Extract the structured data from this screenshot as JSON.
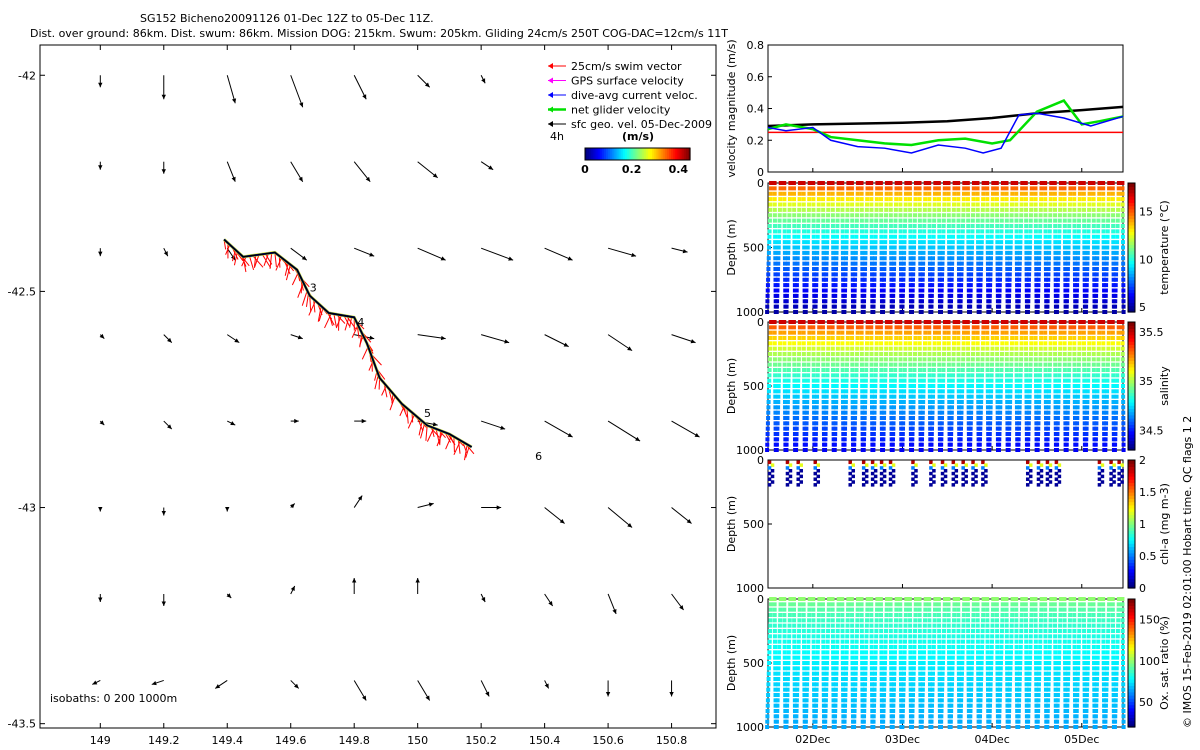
{
  "title_line1": "SG152 Bicheno20091126 01-Dec 12Z to 05-Dec 11Z.",
  "title_line2": "Dist. over ground: 86km. Dist. swum: 86km. Mission DOG: 215km. Swum: 205km. Gliding 24cm/s 250T COG-DAC=12cm/s 11T",
  "side_credit": "© IMOS 15-Feb-2019 02:01:00 Hobart time. QC flags 1  2",
  "colors": {
    "black": "#000000",
    "red": "#ff0000",
    "magenta": "#ff00ff",
    "blue": "#0000ff",
    "green": "#00e000",
    "yellow": "#e8e800"
  },
  "chart_data": [
    {
      "id": "map",
      "type": "scatter",
      "subtype": "vector-field-map",
      "x_ticks": [
        "149",
        "149.2",
        "149.4",
        "149.6",
        "149.8",
        "150",
        "150.2",
        "150.4",
        "150.6",
        "150.8"
      ],
      "y_ticks": [
        "-42",
        "-42.5",
        "-43",
        "-43.5"
      ],
      "xlim": [
        148.81,
        150.94
      ],
      "ylim": [
        -43.51,
        -41.93
      ],
      "legend": [
        {
          "label": "25cm/s swim vector",
          "color": "#ff0000"
        },
        {
          "label": "GPS surface velocity",
          "color": "#ff00ff"
        },
        {
          "label": "dive-avg current veloc.",
          "color": "#0000ff"
        },
        {
          "label": "net glider velocity",
          "color": "#00e000"
        },
        {
          "label": "sfc geo. vel. 05-Dec-2009",
          "color": "#000000"
        }
      ],
      "legend_position": "top-right",
      "colorbar": {
        "title": "(m/s)",
        "side_label": "4h",
        "ticks": [
          "0",
          "0.2",
          "0.4"
        ],
        "range": [
          0,
          0.45
        ]
      },
      "isobaths_text": "isobaths: 0   200  1000m",
      "day_markers": [
        {
          "label": "3",
          "lon": 149.66,
          "lat": -42.5
        },
        {
          "label": "4",
          "lon": 149.81,
          "lat": -42.58
        },
        {
          "label": "5",
          "lon": 150.02,
          "lat": -42.79
        },
        {
          "label": "6",
          "lon": 150.37,
          "lat": -42.89
        }
      ],
      "track": [
        [
          149.39,
          -42.38
        ],
        [
          149.45,
          -42.42
        ],
        [
          149.55,
          -42.41
        ],
        [
          149.62,
          -42.45
        ],
        [
          149.66,
          -42.51
        ],
        [
          149.72,
          -42.55
        ],
        [
          149.8,
          -42.56
        ],
        [
          149.84,
          -42.62
        ],
        [
          149.88,
          -42.7
        ],
        [
          149.95,
          -42.76
        ],
        [
          150.03,
          -42.81
        ],
        [
          150.1,
          -42.83
        ],
        [
          150.17,
          -42.86
        ]
      ],
      "vectors": [
        {
          "lon": 149.0,
          "lat": -42.0,
          "u": 0.0,
          "v": -0.03
        },
        {
          "lon": 149.2,
          "lat": -42.0,
          "u": 0.0,
          "v": -0.06
        },
        {
          "lon": 149.4,
          "lat": -42.0,
          "u": 0.02,
          "v": -0.07
        },
        {
          "lon": 149.6,
          "lat": -42.0,
          "u": 0.03,
          "v": -0.08
        },
        {
          "lon": 149.8,
          "lat": -42.0,
          "u": 0.03,
          "v": -0.06
        },
        {
          "lon": 150.0,
          "lat": -42.0,
          "u": 0.03,
          "v": -0.03
        },
        {
          "lon": 150.2,
          "lat": -42.0,
          "u": 0.01,
          "v": -0.02
        },
        {
          "lon": 149.0,
          "lat": -42.2,
          "u": 0.0,
          "v": -0.02
        },
        {
          "lon": 149.2,
          "lat": -42.2,
          "u": 0.0,
          "v": -0.03
        },
        {
          "lon": 149.4,
          "lat": -42.2,
          "u": 0.02,
          "v": -0.05
        },
        {
          "lon": 149.6,
          "lat": -42.2,
          "u": 0.03,
          "v": -0.05
        },
        {
          "lon": 149.8,
          "lat": -42.2,
          "u": 0.04,
          "v": -0.05
        },
        {
          "lon": 150.0,
          "lat": -42.2,
          "u": 0.05,
          "v": -0.04
        },
        {
          "lon": 150.2,
          "lat": -42.2,
          "u": 0.03,
          "v": -0.02
        },
        {
          "lon": 149.0,
          "lat": -42.4,
          "u": 0.0,
          "v": -0.02
        },
        {
          "lon": 149.2,
          "lat": -42.4,
          "u": 0.01,
          "v": -0.02
        },
        {
          "lon": 149.4,
          "lat": -42.4,
          "u": 0.02,
          "v": -0.03
        },
        {
          "lon": 149.6,
          "lat": -42.4,
          "u": 0.04,
          "v": -0.03
        },
        {
          "lon": 149.8,
          "lat": -42.4,
          "u": 0.05,
          "v": -0.02
        },
        {
          "lon": 150.0,
          "lat": -42.4,
          "u": 0.07,
          "v": -0.03
        },
        {
          "lon": 150.2,
          "lat": -42.4,
          "u": 0.08,
          "v": -0.03
        },
        {
          "lon": 150.4,
          "lat": -42.4,
          "u": 0.07,
          "v": -0.03
        },
        {
          "lon": 150.6,
          "lat": -42.4,
          "u": 0.07,
          "v": -0.02
        },
        {
          "lon": 150.8,
          "lat": -42.4,
          "u": 0.04,
          "v": -0.01
        },
        {
          "lon": 149.0,
          "lat": -42.6,
          "u": 0.01,
          "v": -0.01
        },
        {
          "lon": 149.2,
          "lat": -42.6,
          "u": 0.02,
          "v": -0.02
        },
        {
          "lon": 149.4,
          "lat": -42.6,
          "u": 0.03,
          "v": -0.02
        },
        {
          "lon": 149.6,
          "lat": -42.6,
          "u": 0.03,
          "v": -0.01
        },
        {
          "lon": 149.8,
          "lat": -42.6,
          "u": 0.05,
          "v": -0.01
        },
        {
          "lon": 150.0,
          "lat": -42.6,
          "u": 0.07,
          "v": -0.01
        },
        {
          "lon": 150.2,
          "lat": -42.6,
          "u": 0.07,
          "v": -0.02
        },
        {
          "lon": 150.4,
          "lat": -42.6,
          "u": 0.06,
          "v": -0.03
        },
        {
          "lon": 150.6,
          "lat": -42.6,
          "u": 0.06,
          "v": -0.04
        },
        {
          "lon": 150.8,
          "lat": -42.6,
          "u": 0.06,
          "v": -0.02
        },
        {
          "lon": 149.0,
          "lat": -42.8,
          "u": 0.01,
          "v": -0.01
        },
        {
          "lon": 149.2,
          "lat": -42.8,
          "u": 0.02,
          "v": -0.02
        },
        {
          "lon": 149.4,
          "lat": -42.8,
          "u": 0.02,
          "v": -0.01
        },
        {
          "lon": 149.6,
          "lat": -42.8,
          "u": 0.02,
          "v": 0.0
        },
        {
          "lon": 149.8,
          "lat": -42.8,
          "u": 0.03,
          "v": 0.0
        },
        {
          "lon": 150.0,
          "lat": -42.8,
          "u": 0.05,
          "v": -0.01
        },
        {
          "lon": 150.2,
          "lat": -42.8,
          "u": 0.06,
          "v": -0.02
        },
        {
          "lon": 150.4,
          "lat": -42.8,
          "u": 0.07,
          "v": -0.04
        },
        {
          "lon": 150.6,
          "lat": -42.8,
          "u": 0.08,
          "v": -0.05
        },
        {
          "lon": 150.8,
          "lat": -42.8,
          "u": 0.07,
          "v": -0.04
        },
        {
          "lon": 149.0,
          "lat": -43.0,
          "u": 0.0,
          "v": -0.01
        },
        {
          "lon": 149.2,
          "lat": -43.0,
          "u": 0.0,
          "v": -0.02
        },
        {
          "lon": 149.4,
          "lat": -43.0,
          "u": 0.0,
          "v": -0.01
        },
        {
          "lon": 149.6,
          "lat": -43.0,
          "u": 0.01,
          "v": 0.01
        },
        {
          "lon": 149.8,
          "lat": -43.0,
          "u": 0.02,
          "v": 0.03
        },
        {
          "lon": 150.0,
          "lat": -43.0,
          "u": 0.04,
          "v": 0.01
        },
        {
          "lon": 150.2,
          "lat": -43.0,
          "u": 0.05,
          "v": 0.0
        },
        {
          "lon": 150.4,
          "lat": -43.0,
          "u": 0.05,
          "v": -0.04
        },
        {
          "lon": 150.6,
          "lat": -43.0,
          "u": 0.06,
          "v": -0.05
        },
        {
          "lon": 150.8,
          "lat": -43.0,
          "u": 0.05,
          "v": -0.04
        },
        {
          "lon": 149.0,
          "lat": -43.2,
          "u": 0.0,
          "v": -0.02
        },
        {
          "lon": 149.2,
          "lat": -43.2,
          "u": 0.0,
          "v": -0.03
        },
        {
          "lon": 149.4,
          "lat": -43.2,
          "u": 0.01,
          "v": -0.01
        },
        {
          "lon": 149.6,
          "lat": -43.2,
          "u": 0.01,
          "v": 0.02
        },
        {
          "lon": 149.8,
          "lat": -43.2,
          "u": 0.0,
          "v": 0.04
        },
        {
          "lon": 150.0,
          "lat": -43.2,
          "u": 0.0,
          "v": 0.04
        },
        {
          "lon": 150.2,
          "lat": -43.2,
          "u": 0.01,
          "v": -0.02
        },
        {
          "lon": 150.4,
          "lat": -43.2,
          "u": 0.02,
          "v": -0.03
        },
        {
          "lon": 150.6,
          "lat": -43.2,
          "u": 0.02,
          "v": -0.05
        },
        {
          "lon": 150.8,
          "lat": -43.2,
          "u": 0.03,
          "v": -0.04
        },
        {
          "lon": 149.0,
          "lat": -43.4,
          "u": -0.02,
          "v": -0.01
        },
        {
          "lon": 149.2,
          "lat": -43.4,
          "u": -0.03,
          "v": -0.01
        },
        {
          "lon": 149.4,
          "lat": -43.4,
          "u": -0.03,
          "v": -0.02
        },
        {
          "lon": 149.6,
          "lat": -43.4,
          "u": 0.02,
          "v": -0.02
        },
        {
          "lon": 149.8,
          "lat": -43.4,
          "u": 0.03,
          "v": -0.05
        },
        {
          "lon": 150.0,
          "lat": -43.4,
          "u": 0.03,
          "v": -0.05
        },
        {
          "lon": 150.2,
          "lat": -43.4,
          "u": 0.02,
          "v": -0.04
        },
        {
          "lon": 150.4,
          "lat": -43.4,
          "u": 0.01,
          "v": -0.02
        },
        {
          "lon": 150.6,
          "lat": -43.4,
          "u": 0.0,
          "v": -0.04
        },
        {
          "lon": 150.8,
          "lat": -43.4,
          "u": 0.0,
          "v": -0.04
        }
      ]
    },
    {
      "id": "velocity",
      "type": "line",
      "ylabel": "velocity magnitude (m/s)",
      "yticks": [
        "0",
        "0.2",
        "0.4",
        "0.6",
        "0.8"
      ],
      "ylim": [
        0,
        0.8
      ],
      "x_range_days": [
        1.5,
        5.46
      ],
      "series": [
        {
          "name": "swim speed",
          "color": "#ff0000",
          "x": [
            1.5,
            5.46
          ],
          "values": [
            0.25,
            0.25
          ]
        },
        {
          "name": "sfc geo. vel.",
          "color": "#000000",
          "x": [
            1.5,
            2.0,
            3.0,
            3.5,
            4.0,
            4.5,
            5.0,
            5.46
          ],
          "values": [
            0.29,
            0.3,
            0.31,
            0.32,
            0.34,
            0.37,
            0.39,
            0.41
          ]
        },
        {
          "name": "net glider velocity",
          "color": "#00e000",
          "x": [
            1.5,
            1.7,
            2.0,
            2.2,
            2.5,
            2.8,
            3.1,
            3.4,
            3.7,
            4.0,
            4.2,
            4.5,
            4.8,
            5.0,
            5.2,
            5.46
          ],
          "values": [
            0.27,
            0.3,
            0.27,
            0.22,
            0.2,
            0.18,
            0.17,
            0.2,
            0.21,
            0.18,
            0.2,
            0.38,
            0.45,
            0.3,
            0.32,
            0.35
          ]
        },
        {
          "name": "dive-avg current veloc.",
          "color": "#0000ff",
          "x": [
            1.5,
            1.7,
            2.0,
            2.2,
            2.5,
            2.8,
            3.1,
            3.4,
            3.7,
            3.9,
            4.1,
            4.3,
            4.5,
            4.8,
            5.1,
            5.46
          ],
          "values": [
            0.28,
            0.26,
            0.28,
            0.2,
            0.16,
            0.15,
            0.12,
            0.17,
            0.15,
            0.12,
            0.15,
            0.36,
            0.37,
            0.34,
            0.29,
            0.35
          ]
        }
      ]
    },
    {
      "id": "temperature",
      "type": "scatter",
      "ylabel": "Depth (m)",
      "yticks": [
        "0",
        "500",
        "1000"
      ],
      "ylim": [
        1000,
        0
      ],
      "colorbar": {
        "label": "temperature (°C)",
        "ticks": [
          "5",
          "10",
          "15"
        ],
        "range": [
          4.5,
          18
        ]
      },
      "dives": 37,
      "surface_value": 17,
      "deep_value": 5,
      "max_depth_m": 1000
    },
    {
      "id": "salinity",
      "type": "scatter",
      "ylabel": "Depth (m)",
      "yticks": [
        "0",
        "500",
        "1000"
      ],
      "ylim": [
        1000,
        0
      ],
      "colorbar": {
        "label": "salinity",
        "ticks": [
          "34.5",
          "35",
          "35.5"
        ],
        "range": [
          34.3,
          35.6
        ]
      },
      "dives": 37,
      "surface_value": 35.5,
      "deep_value": 34.45,
      "max_depth_m": 1000
    },
    {
      "id": "chlorophyll",
      "type": "scatter",
      "ylabel": "Depth (m)",
      "yticks": [
        "0",
        "500",
        "1000"
      ],
      "ylim": [
        1000,
        0
      ],
      "colorbar": {
        "label": "chl-a (mg m-3)",
        "ticks": [
          "0",
          "0.5",
          "1",
          "1.5",
          "2"
        ],
        "range": [
          0,
          2
        ]
      },
      "dive_x_days": [
        1.52,
        1.72,
        1.84,
        2.03,
        2.42,
        2.57,
        2.67,
        2.77,
        2.87,
        3.12,
        3.32,
        3.45,
        3.57,
        3.68,
        3.79,
        3.9,
        4.4,
        4.52,
        4.62,
        4.72,
        5.2,
        5.33,
        5.42
      ],
      "max_depth_m": 200
    },
    {
      "id": "oxygen",
      "type": "scatter",
      "ylabel": "Depth (m)",
      "yticks": [
        "0",
        "500",
        "1000"
      ],
      "ylim": [
        1000,
        0
      ],
      "xticks": [
        "02Dec",
        "03Dec",
        "04Dec",
        "05Dec"
      ],
      "colorbar": {
        "label": "Ox. sat. ratio (%)",
        "ticks": [
          "50",
          "100",
          "150"
        ],
        "range": [
          20,
          175
        ]
      },
      "dives": 37,
      "surface_value": 100,
      "deep_value": 65,
      "max_depth_m": 1000
    }
  ]
}
